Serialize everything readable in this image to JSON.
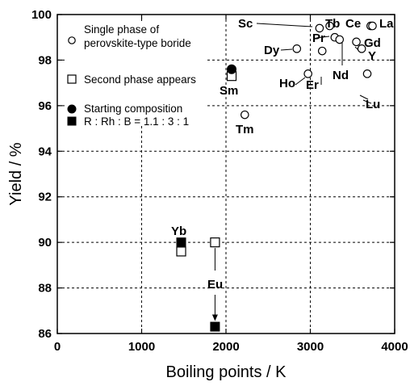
{
  "chart_data": {
    "type": "scatter",
    "title": "",
    "xlabel": "Boiling points / K",
    "ylabel": "Yield / %",
    "xlim": [
      0,
      4000
    ],
    "ylim": [
      86,
      100
    ],
    "xticks": [
      0,
      1000,
      2000,
      3000,
      4000
    ],
    "yticks": [
      86,
      88,
      90,
      92,
      94,
      96,
      98,
      100
    ],
    "grid": "dashed, at major ticks",
    "legend_placement": "top-left",
    "legend": [
      {
        "marker": "open-circle",
        "lines": [
          "Single phase of",
          "perovskite-type boride"
        ]
      },
      {
        "marker": "open-square",
        "lines": [
          "Second phase appears"
        ]
      },
      {
        "marker": "filled-circle",
        "lines": [
          "Starting composition"
        ]
      },
      {
        "marker": "filled-square",
        "lines": [
          "R : Rh : B = 1.1 : 3 : 1"
        ]
      }
    ],
    "series": [
      {
        "marker": "open-circle",
        "points": [
          {
            "label": "Sc",
            "x": 3109,
            "y": 99.4
          },
          {
            "label": "Tb",
            "x": 3230,
            "y": 99.5
          },
          {
            "label": "Ce",
            "x": 3716,
            "y": 99.5
          },
          {
            "label": "La",
            "x": 3737,
            "y": 99.5
          },
          {
            "label": "Pr",
            "x": 3290,
            "y": 99.0
          },
          {
            "label": "Nd",
            "x": 3347,
            "y": 98.9
          },
          {
            "label": "Gd",
            "x": 3546,
            "y": 98.8
          },
          {
            "label": "Y",
            "x": 3609,
            "y": 98.5
          },
          {
            "label": "Dy",
            "x": 2840,
            "y": 98.5
          },
          {
            "label": "Er",
            "x": 3141,
            "y": 98.4
          },
          {
            "label": "Ho",
            "x": 2973,
            "y": 97.4
          },
          {
            "label": "Lu",
            "x": 3675,
            "y": 97.4
          },
          {
            "label": "Tm",
            "x": 2223,
            "y": 95.6
          }
        ]
      },
      {
        "marker": "open-square",
        "points": [
          {
            "label": "Sm",
            "x": 2067,
            "y": 97.3
          },
          {
            "label": "Yb",
            "x": 1469,
            "y": 89.6
          },
          {
            "label": "Eu",
            "x": 1870,
            "y": 90.0
          }
        ]
      },
      {
        "marker": "filled-circle",
        "points": [
          {
            "label": "Sm",
            "x": 2067,
            "y": 97.6
          }
        ]
      },
      {
        "marker": "filled-square",
        "points": [
          {
            "label": "Yb",
            "x": 1469,
            "y": 90.0
          },
          {
            "label": "Eu",
            "x": 1870,
            "y": 86.3
          }
        ]
      }
    ],
    "point_labels": [
      "Sc",
      "Tb",
      "Ce",
      "La",
      "Pr",
      "Gd",
      "Dy",
      "Y",
      "Nd",
      "Er",
      "Ho",
      "Lu",
      "Sm",
      "Tm",
      "Yb",
      "Eu"
    ]
  }
}
